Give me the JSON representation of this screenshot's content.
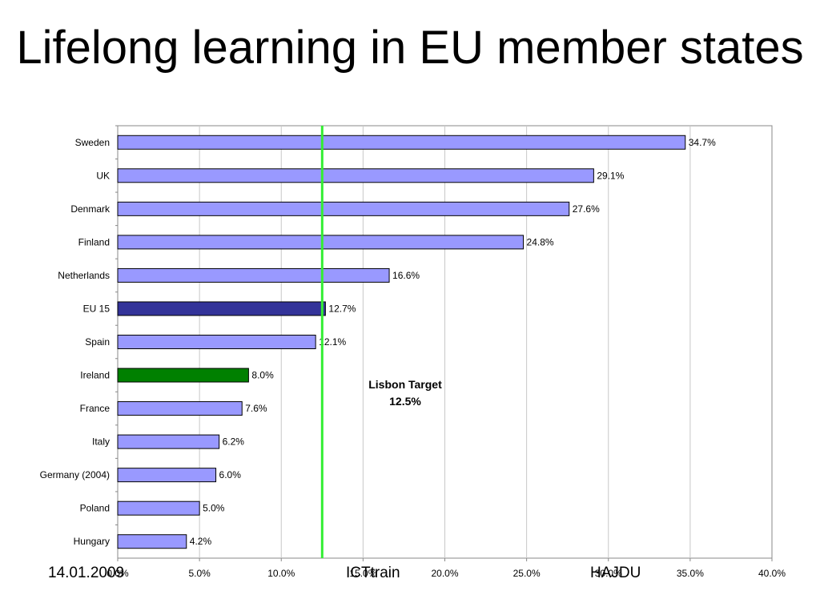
{
  "slide": {
    "title": "Lifelong learning in EU member states",
    "footer_left": "14.01.2009",
    "footer_center": "ICTtrain",
    "footer_right": "HAJDU"
  },
  "chart_data": {
    "type": "bar",
    "orientation": "horizontal",
    "categories": [
      "Sweden",
      "UK",
      "Denmark",
      "Finland",
      "Netherlands",
      "EU 15",
      "Spain",
      "Ireland",
      "France",
      "Italy",
      "Germany (2004)",
      "Poland",
      "Hungary"
    ],
    "values": [
      34.7,
      29.1,
      27.6,
      24.8,
      16.6,
      12.7,
      12.1,
      8.0,
      7.6,
      6.2,
      6.0,
      5.0,
      4.2
    ],
    "value_labels": [
      "34.7%",
      "29.1%",
      "27.6%",
      "24.8%",
      "16.6%",
      "12.7%",
      "12.1%",
      "8.0%",
      "7.6%",
      "6.2%",
      "6.0%",
      "5.0%",
      "4.2%"
    ],
    "bar_colors": {
      "default": "#9999ff",
      "EU 15": "#333399",
      "Ireland": "#008000"
    },
    "xlim": [
      0,
      40
    ],
    "x_ticks": [
      0,
      5,
      10,
      15,
      20,
      25,
      30,
      35,
      40
    ],
    "x_tick_labels": [
      "0.0%",
      "5.0%",
      "10.0%",
      "15.0%",
      "20.0%",
      "25.0%",
      "30.0%",
      "35.0%",
      "40.0%"
    ],
    "grid": "vertical",
    "reference_line": {
      "value": 12.5,
      "color": "#33ee33",
      "label_line1": "Lisbon Target",
      "label_line2": "12.5%"
    }
  }
}
